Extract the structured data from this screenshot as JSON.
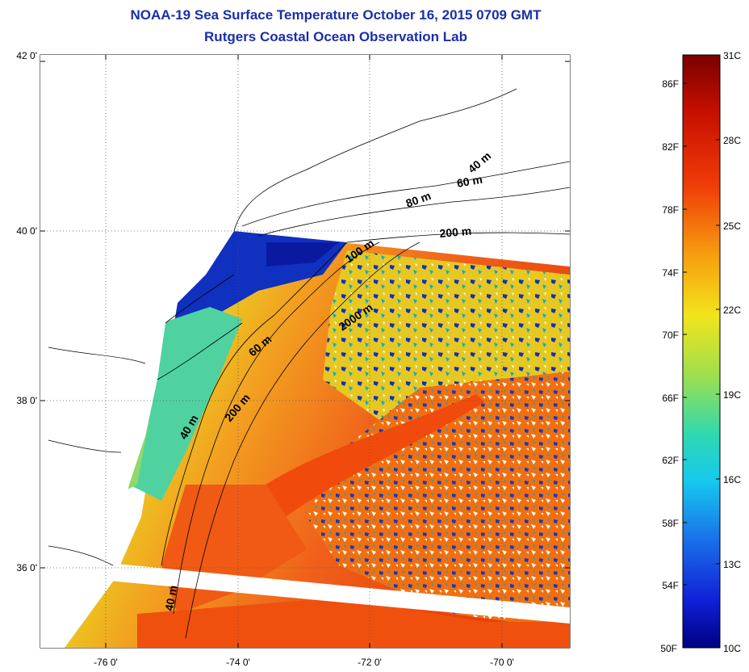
{
  "header": {
    "title": "NOAA-19 Sea Surface Temperature October 16, 2015 0709 GMT",
    "subtitle": "Rutgers Coastal Ocean Observation Lab"
  },
  "map": {
    "lat_ticks": [
      "42 0'",
      "40 0'",
      "38 0'",
      "36 0'"
    ],
    "lon_ticks": [
      "-76 0'",
      "-74 0'",
      "-72 0'",
      "-70 0'"
    ],
    "depth_labels": [
      "40 m",
      "60 m",
      "80 m",
      "200 m",
      "100 m",
      "2000 m",
      "60 m",
      "200 m",
      "40 m",
      "40 m"
    ]
  },
  "colorbar": {
    "fahrenheit": [
      "86F",
      "82F",
      "78F",
      "74F",
      "70F",
      "66F",
      "62F",
      "58F",
      "54F",
      "50F"
    ],
    "celsius": [
      "31C",
      "28C",
      "25C",
      "22C",
      "19C",
      "16C",
      "13C",
      "10C"
    ]
  },
  "colors": {
    "title": "#1a2fa8",
    "cold": "#00008f",
    "cool": "#1e5bd8",
    "mild": "#3ec9c9",
    "warm": "#f2d41c",
    "hot": "#f04a0c",
    "hottest": "#8a0000"
  }
}
